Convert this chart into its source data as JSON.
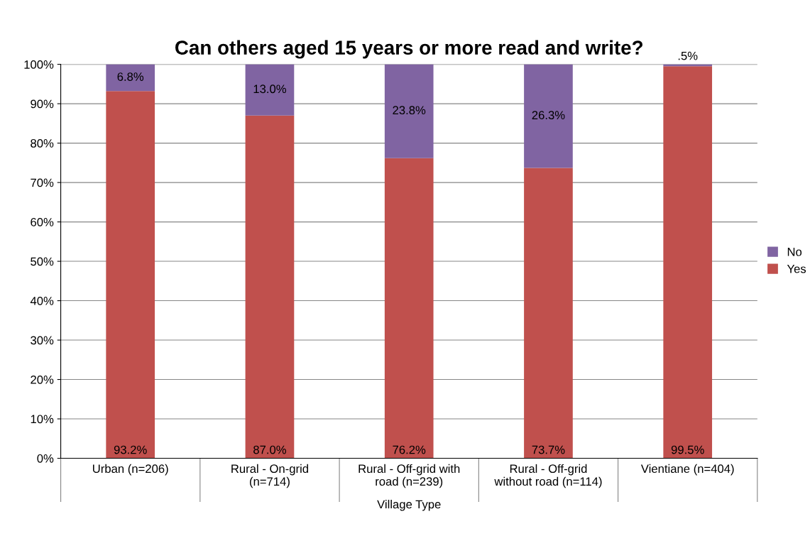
{
  "chart_data": {
    "type": "bar",
    "stacked": true,
    "title": "Can others aged 15 years or more read and write?",
    "xlabel": "Village Type",
    "categories": [
      "Urban (n=206)",
      "Rural - On-grid\n(n=714)",
      "Rural - Off-grid with\nroad (n=239)",
      "Rural - Off-grid\nwithout road (n=114)",
      "Vientiane (n=404)"
    ],
    "series": [
      {
        "name": "Yes",
        "color": "#c0504d",
        "values": [
          93.2,
          87.0,
          76.2,
          73.7,
          99.5
        ],
        "value_labels": [
          "93.2%",
          "87.0%",
          "76.2%",
          "73.7%",
          "99.5%"
        ]
      },
      {
        "name": "No",
        "color": "#8064a2",
        "values": [
          6.8,
          13.0,
          23.8,
          26.3,
          0.5
        ],
        "value_labels": [
          "6.8%",
          "13.0%",
          "23.8%",
          "26.3%",
          ".5%"
        ]
      }
    ],
    "ylim": [
      0,
      100
    ],
    "yticks": [
      {
        "value": 0,
        "label": "0%"
      },
      {
        "value": 10,
        "label": "10%"
      },
      {
        "value": 20,
        "label": "20%"
      },
      {
        "value": 30,
        "label": "30%"
      },
      {
        "value": 40,
        "label": "40%"
      },
      {
        "value": 50,
        "label": "50%"
      },
      {
        "value": 60,
        "label": "60%"
      },
      {
        "value": 70,
        "label": "70%"
      },
      {
        "value": 80,
        "label": "80%"
      },
      {
        "value": 90,
        "label": "90%"
      },
      {
        "value": 100,
        "label": "100%"
      }
    ],
    "grid": "y",
    "legend": "right"
  }
}
